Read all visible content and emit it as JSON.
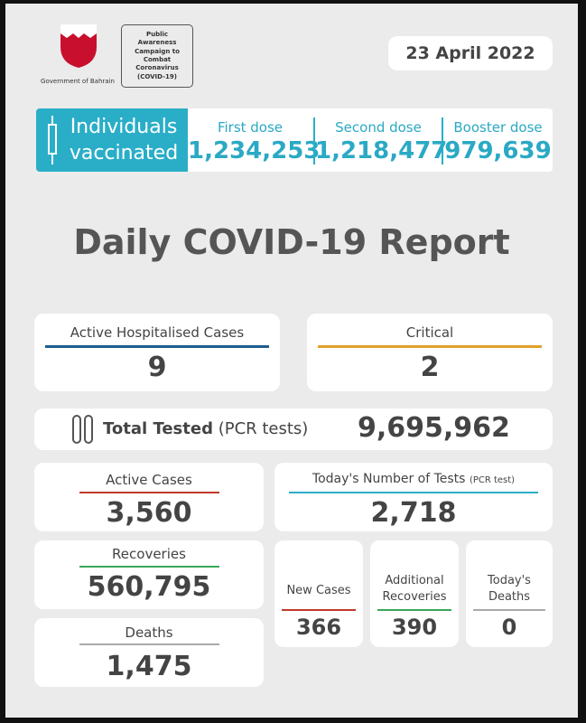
{
  "header": {
    "logo_caption": "Government of Bahrain",
    "campaign": "Public Awareness Campaign to Combat Coronavirus (COVID-19)",
    "date": "23 April 2022"
  },
  "vaccination": {
    "label": "Individuals vaccinated",
    "doses": [
      {
        "name": "First dose",
        "value": "1,234,253"
      },
      {
        "name": "Second dose",
        "value": "1,218,477"
      },
      {
        "name": "Booster dose",
        "value": "979,639"
      }
    ]
  },
  "title": "Daily COVID-19 Report",
  "hospitalised": {
    "label": "Active Hospitalised Cases",
    "value": "9"
  },
  "critical": {
    "label": "Critical",
    "value": "2"
  },
  "total_tested": {
    "label": "Total Tested",
    "note": "(PCR tests)",
    "value": "9,695,962"
  },
  "active_cases": {
    "label": "Active Cases",
    "value": "3,560"
  },
  "todays_tests": {
    "label": "Today's Number of Tests",
    "note": "(PCR test)",
    "value": "2,718"
  },
  "recoveries": {
    "label": "Recoveries",
    "value": "560,795"
  },
  "deaths": {
    "label": "Deaths",
    "value": "1,475"
  },
  "new_cases": {
    "label": "New Cases",
    "value": "366"
  },
  "additional_recoveries": {
    "label": "Additional Recoveries",
    "value": "390"
  },
  "todays_deaths": {
    "label": "Today's Deaths",
    "value": "0"
  }
}
